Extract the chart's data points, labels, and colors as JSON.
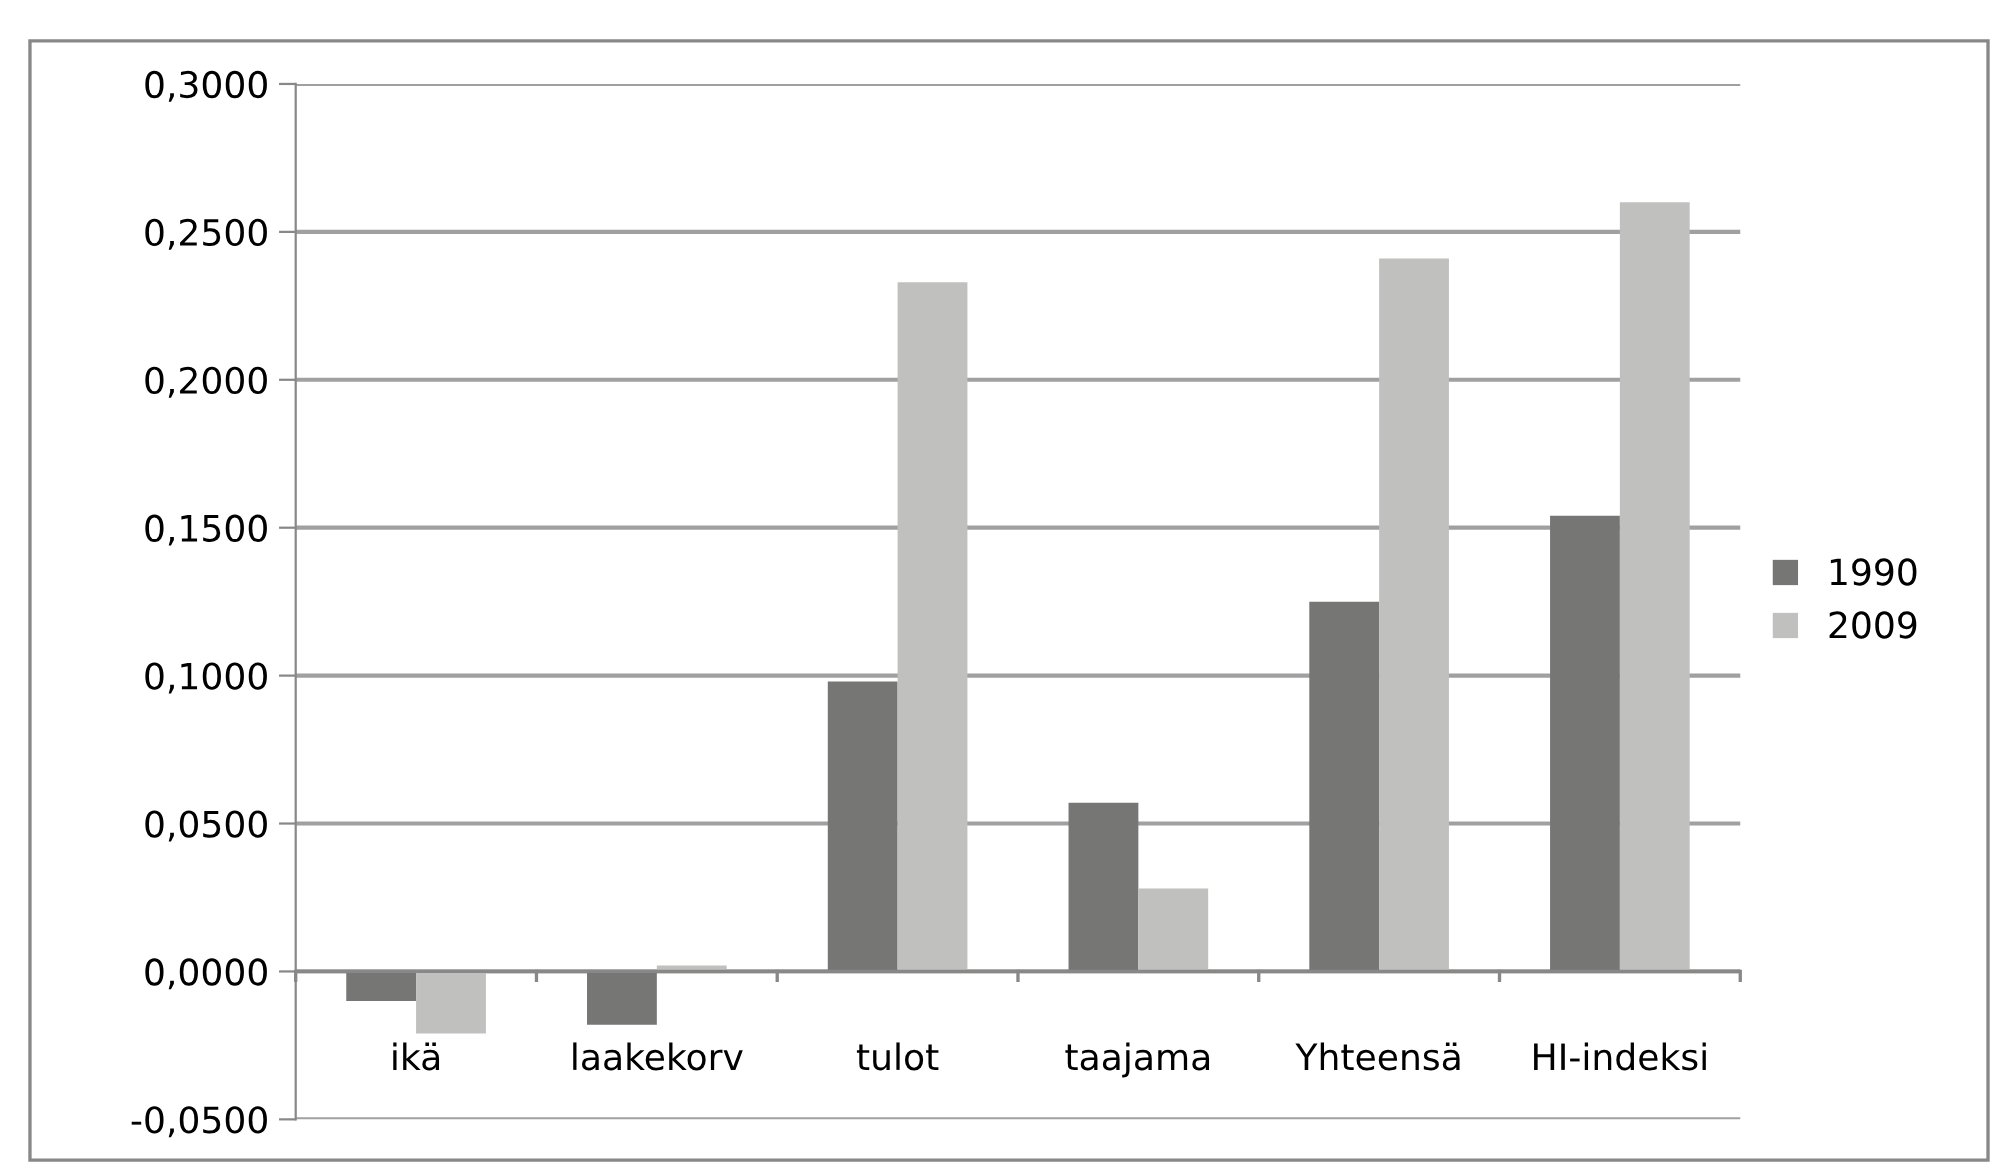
{
  "chart_data": {
    "type": "bar",
    "categories": [
      "ikä",
      "laakekorv",
      "tulot",
      "taajama",
      "Yhteensä",
      "HI-indeksi"
    ],
    "series": [
      {
        "name": "1990",
        "color": "#767674",
        "values": [
          -0.01,
          -0.018,
          0.098,
          0.057,
          0.125,
          0.154
        ]
      },
      {
        "name": "2009",
        "color": "#c0c0be",
        "values": [
          -0.021,
          0.002,
          0.233,
          0.028,
          0.241,
          0.26
        ]
      }
    ],
    "ylim": [
      -0.05,
      0.3
    ],
    "yticks": [
      {
        "value": -0.05,
        "label": "-0,0500"
      },
      {
        "value": 0,
        "label": "0,0000"
      },
      {
        "value": 0.05,
        "label": "0,0500"
      },
      {
        "value": 0.1,
        "label": "0,1000"
      },
      {
        "value": 0.15,
        "label": "0,1500"
      },
      {
        "value": 0.2,
        "label": "0,2000"
      },
      {
        "value": 0.25,
        "label": "0,2500"
      },
      {
        "value": 0.3,
        "label": "0,3000"
      }
    ],
    "grid": "y",
    "legend": "right"
  }
}
